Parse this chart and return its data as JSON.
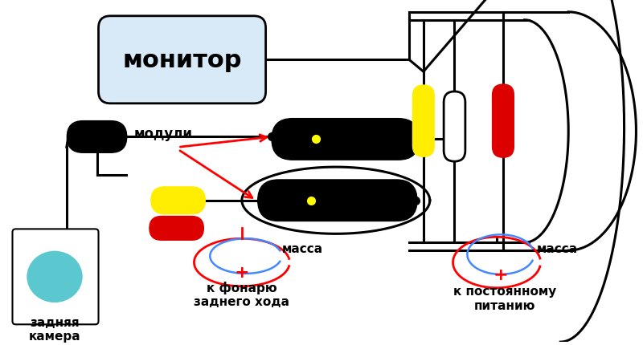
{
  "bg_color": "#ffffff",
  "monitor_label": "монитор",
  "camera_label": "задняя\nкамера",
  "moduli_label": "модули",
  "massa1_word": "масса",
  "massa1_sub": "к фонарю\nзаднего хода",
  "massa2_word": "масса",
  "massa2_sub": "к постоянному\nпитанию",
  "monitor_color": "#d8eaf7",
  "camera_circle_color": "#5bc8d0"
}
